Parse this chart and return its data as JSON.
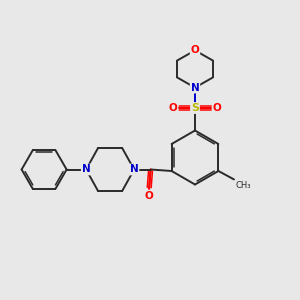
{
  "background_color": "#e8e8e8",
  "bond_color": "#2a2a2a",
  "N_color": "#0000cc",
  "O_color": "#ff0000",
  "S_color": "#bbbb00",
  "figsize": [
    3.0,
    3.0
  ],
  "dpi": 100,
  "xlim": [
    0,
    10
  ],
  "ylim": [
    0,
    10
  ]
}
